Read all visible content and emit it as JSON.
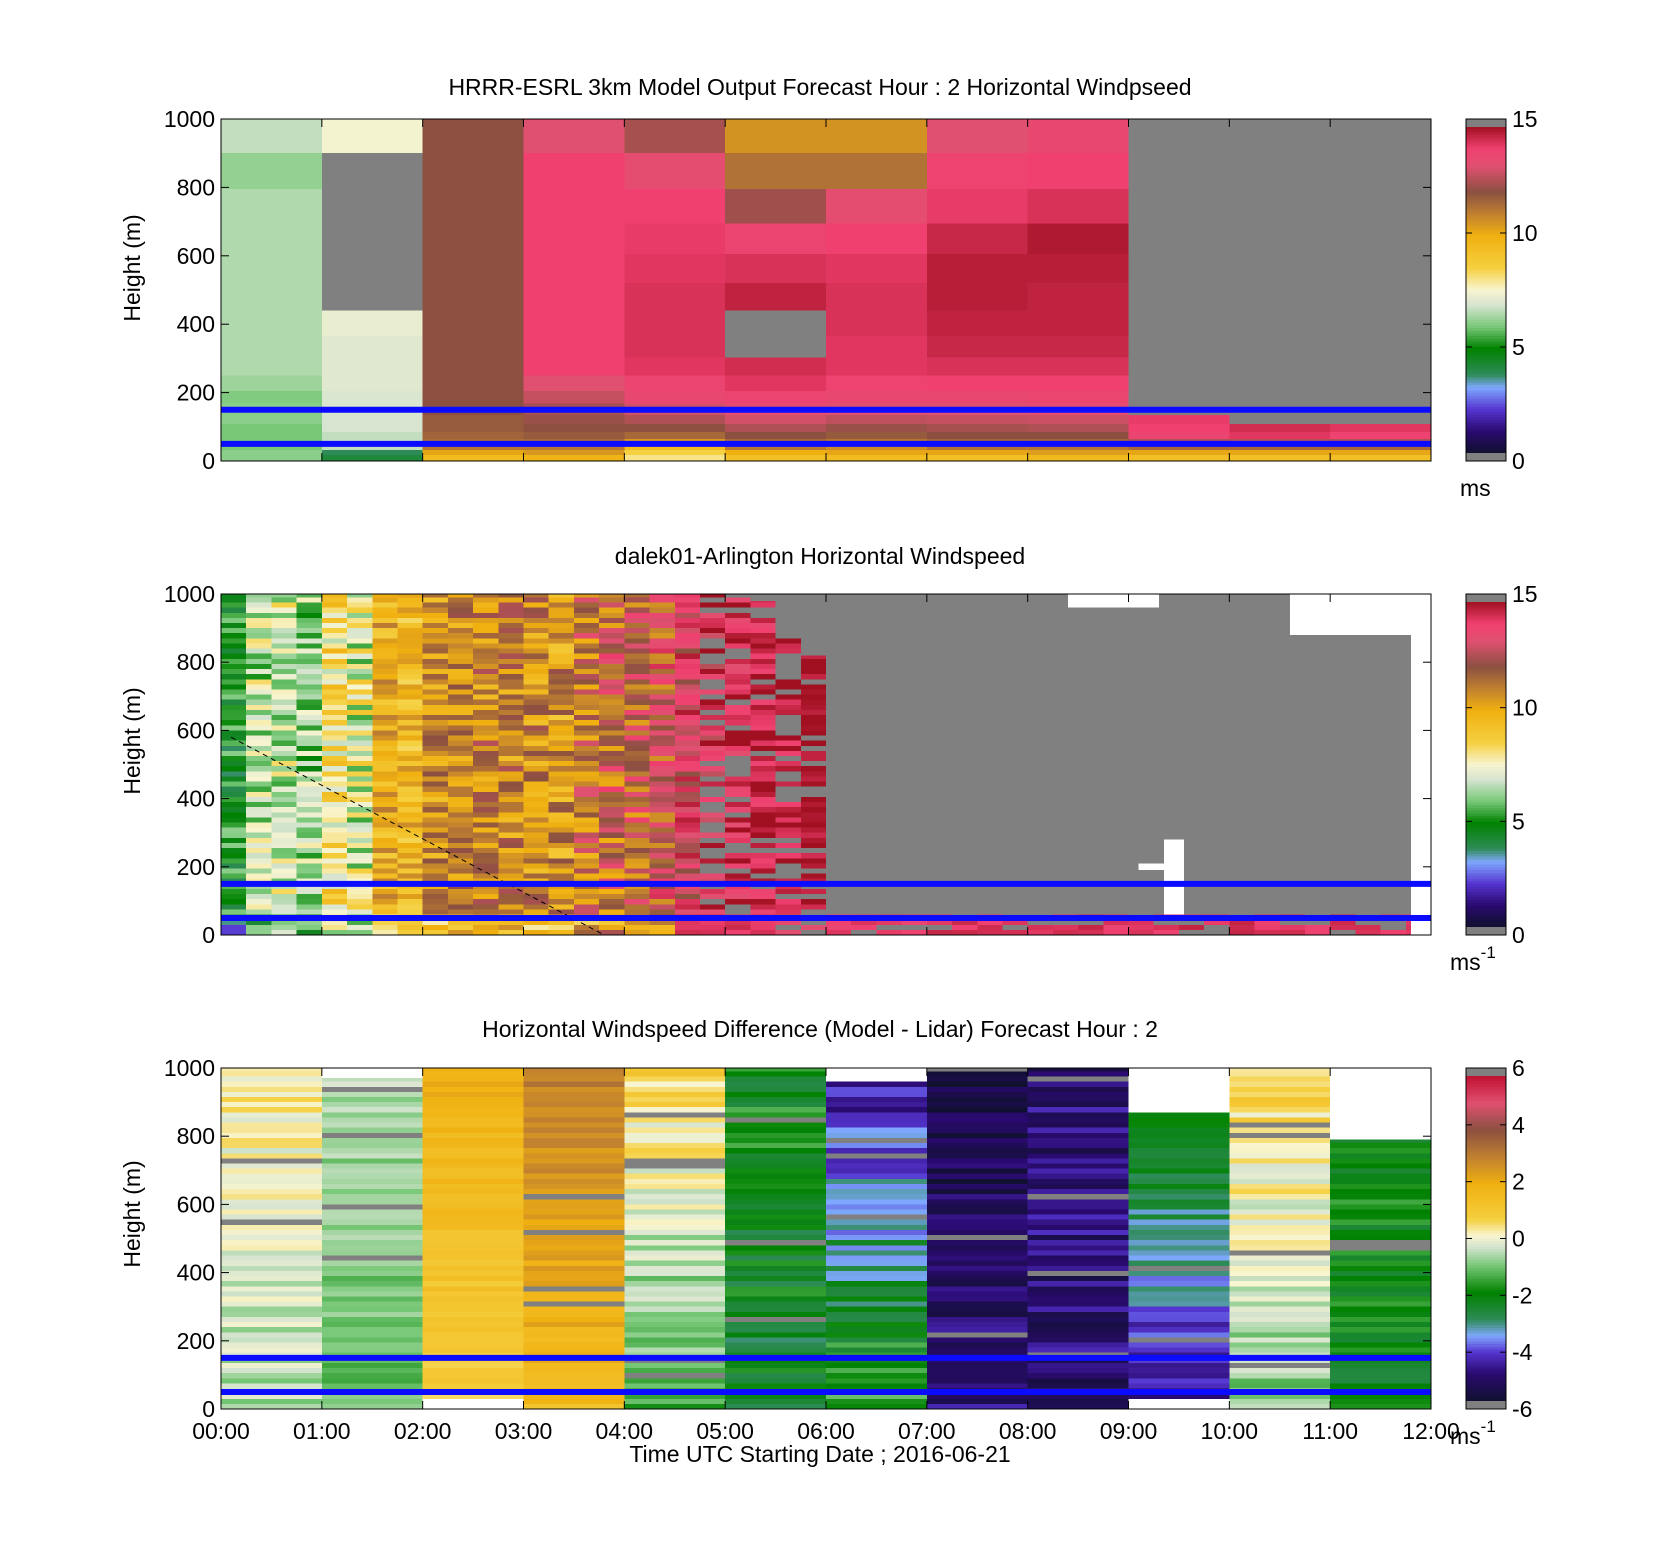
{
  "figure": {
    "xlabel": "Time UTC  Starting Date ; 2016-06-21",
    "x_ticks": [
      "00:00",
      "01:00",
      "02:00",
      "03:00",
      "04:00",
      "05:00",
      "06:00",
      "07:00",
      "08:00",
      "09:00",
      "10:00",
      "11:00",
      "12:00"
    ]
  },
  "reference_lines": {
    "color": "#0b0bff",
    "heights_m": [
      150,
      50
    ]
  },
  "colors": {
    "missing": "#808080",
    "windspeed_colormap_stops": [
      [
        0,
        "#101030"
      ],
      [
        1,
        "#2a0a70"
      ],
      [
        2,
        "#5535d0"
      ],
      [
        3,
        "#7fa8ff"
      ],
      [
        3.6,
        "#2e8b57"
      ],
      [
        4.8,
        "#008200"
      ],
      [
        5.8,
        "#78c878"
      ],
      [
        6.8,
        "#d6e4d0"
      ],
      [
        7.5,
        "#f8f5d0"
      ],
      [
        8.5,
        "#f5d040"
      ],
      [
        10,
        "#f0b010"
      ],
      [
        11,
        "#c08030"
      ],
      [
        12,
        "#8b5040"
      ],
      [
        13.2,
        "#e05070"
      ],
      [
        14,
        "#f04070"
      ],
      [
        15,
        "#a01020"
      ]
    ],
    "difference_colormap_stops": [
      [
        -6,
        "#101030"
      ],
      [
        -5,
        "#2a0a70"
      ],
      [
        -4.2,
        "#5535d0"
      ],
      [
        -3.6,
        "#7fa8ff"
      ],
      [
        -3,
        "#2e8b57"
      ],
      [
        -2,
        "#008200"
      ],
      [
        -1,
        "#78c878"
      ],
      [
        -0.3,
        "#d6e4d0"
      ],
      [
        0.1,
        "#f8f5d0"
      ],
      [
        0.7,
        "#f5d040"
      ],
      [
        2,
        "#f0b010"
      ],
      [
        3,
        "#c08030"
      ],
      [
        4,
        "#8b5040"
      ],
      [
        5,
        "#e05070"
      ],
      [
        6,
        "#c01030"
      ]
    ]
  },
  "chart_data": [
    {
      "type": "heatmap",
      "title": "HRRR-ESRL 3km Model Output   Forecast Hour : 2 Horizontal Windpseed",
      "ylabel": "Height (m)",
      "ylim": [
        0,
        1000
      ],
      "y_ticks": [
        "0",
        "200",
        "400",
        "600",
        "800",
        "1000"
      ],
      "xlim_hours": [
        0,
        12
      ],
      "colorbar": {
        "min": 0,
        "max": 15,
        "ticks": [
          "0",
          "5",
          "10",
          "15"
        ],
        "unit": "ms",
        "unit_sup": ""
      },
      "height_levels_m": [
        10,
        25,
        40,
        55,
        75,
        95,
        120,
        150,
        185,
        225,
        275,
        330,
        400,
        480,
        560,
        650,
        740,
        850,
        950
      ],
      "columns": [
        {
          "hours": [
            0,
            1
          ],
          "speeds": [
            6,
            6,
            5.8,
            5.8,
            5.8,
            5.8,
            6,
            6,
            5.9,
            6.2,
            6.4,
            6.4,
            6.4,
            6.4,
            6.4,
            6.4,
            6.4,
            6.1,
            6.6
          ]
        },
        {
          "hours": [
            1,
            2
          ],
          "speeds": [
            4,
            3.6,
            6.6,
            6.6,
            6.6,
            6.8,
            6.8,
            6.9,
            6.9,
            7,
            7,
            7,
            7.2,
            null,
            null,
            null,
            null,
            null,
            7.4
          ]
        },
        {
          "hours": [
            2,
            3
          ],
          "speeds": [
            9.5,
            10.2,
            11.2,
            11.4,
            11.6,
            11.8,
            11.8,
            12,
            12,
            12,
            12,
            12,
            12,
            12,
            12,
            12,
            12,
            12,
            12
          ]
        },
        {
          "hours": [
            3,
            4
          ],
          "speeds": [
            9.8,
            10.5,
            11.2,
            11.5,
            11.8,
            12,
            12.2,
            12.4,
            12.8,
            13.2,
            14,
            14,
            14,
            14,
            14,
            14,
            14,
            14,
            13.2
          ]
        },
        {
          "hours": [
            4,
            5
          ],
          "speeds": [
            8,
            8.5,
            9.5,
            10.5,
            11.5,
            12,
            12.5,
            13,
            13.6,
            13.8,
            14.2,
            14.3,
            14.3,
            14.3,
            14.2,
            14.1,
            14,
            13.4,
            12.4
          ]
        },
        {
          "hours": [
            5,
            6
          ],
          "speeds": [
            9.3,
            10,
            11.2,
            11.5,
            12,
            12.5,
            13,
            13.4,
            13.8,
            14.2,
            14.4,
            null,
            null,
            14.6,
            14.3,
            13.8,
            12.3,
            11.3,
            10.6
          ]
        },
        {
          "hours": [
            6,
            7
          ],
          "speeds": [
            9.5,
            10.2,
            10.8,
            11.2,
            11.8,
            12.2,
            12.7,
            13.2,
            13.6,
            13.9,
            14.2,
            14.2,
            14.3,
            14.3,
            14.2,
            14,
            13.4,
            11.3,
            10.6
          ]
        },
        {
          "hours": [
            7,
            8
          ],
          "speeds": [
            9.3,
            10.2,
            11.3,
            11.6,
            12,
            12.4,
            12.8,
            13.2,
            13.6,
            14,
            14.3,
            14.5,
            14.6,
            14.7,
            14.7,
            14.5,
            14.1,
            13.9,
            13.2
          ]
        },
        {
          "hours": [
            8,
            9
          ],
          "speeds": [
            9.6,
            10.4,
            11.2,
            11.6,
            12,
            12.5,
            12.9,
            13.3,
            13.7,
            14,
            14.3,
            14.5,
            14.6,
            14.6,
            14.7,
            14.8,
            14.3,
            14,
            13.6
          ]
        },
        {
          "hours": [
            9,
            10
          ],
          "speeds": [
            9.3,
            10.2,
            11.5,
            12.5,
            13.8,
            14,
            14.1,
            null,
            null,
            null,
            null,
            null,
            null,
            null,
            null,
            null,
            null,
            null,
            null
          ]
        },
        {
          "hours": [
            10,
            11
          ],
          "speeds": [
            9.3,
            10.2,
            11.5,
            12.6,
            14.2,
            14.4,
            null,
            null,
            null,
            null,
            null,
            null,
            null,
            null,
            null,
            null,
            null,
            null,
            null
          ]
        },
        {
          "hours": [
            11,
            12
          ],
          "speeds": [
            9.3,
            10.2,
            11.5,
            12.5,
            13.9,
            14.2,
            null,
            null,
            null,
            null,
            null,
            null,
            null,
            null,
            null,
            null,
            null,
            null,
            null
          ]
        }
      ]
    },
    {
      "type": "heatmap",
      "title": "dalek01-Arlington  Horizontal Windspeed",
      "ylabel": "Height (m)",
      "ylim": [
        0,
        1000
      ],
      "y_ticks": [
        "0",
        "200",
        "400",
        "600",
        "800",
        "1000"
      ],
      "xlim_hours": [
        0,
        12
      ],
      "colorbar": {
        "min": 0,
        "max": 15,
        "ticks": [
          "0",
          "5",
          "10",
          "15"
        ],
        "unit": "ms",
        "unit_sup": "-1"
      },
      "height_bin_m": 15,
      "column_width_hours": 0.25,
      "column_mean_speeds": [
        4.8,
        6.6,
        6.9,
        6.2,
        8.1,
        7.2,
        9.9,
        9.5,
        10.6,
        10.8,
        11.0,
        10.9,
        10.8,
        10.5,
        11.6,
        12.0,
        12.1,
        12.4,
        13.5,
        13.9,
        14.2,
        14.4,
        14.6,
        14.8
      ],
      "column_speed_spread": [
        0.8,
        1.0,
        1.0,
        1.0,
        1.1,
        1.2,
        0.8,
        0.8,
        0.9,
        0.9,
        1.0,
        1.0,
        1.0,
        1.1,
        1.2,
        1.3,
        1.2,
        1.2,
        1.0,
        0.8,
        0.6,
        0.5,
        0.4,
        0.3
      ],
      "no_data_tops_m": [
        1000,
        1000,
        1000,
        1000,
        1000,
        1000,
        1000,
        1000,
        1000,
        1000,
        1000,
        1000,
        1000,
        1000,
        1000,
        1000,
        1000,
        1000,
        1000,
        1000,
        1000,
        980,
        900,
        820
      ],
      "after_06_missing_above_m": 60,
      "after_06_surface_speeds": [
        14,
        14.2,
        14.3,
        14.1,
        14.4,
        14.2,
        14.3,
        14.1,
        14.4,
        14.2,
        14.3,
        14.1,
        14.4,
        14.2,
        14.3,
        14.1,
        14.4,
        14.2,
        14.3,
        14.1,
        14.4,
        14.2,
        14.3,
        14.1
      ],
      "blank_regions": [
        {
          "t": [
            10.6,
            11.9
          ],
          "h": [
            880,
            1000
          ]
        },
        {
          "t": [
            11.8,
            12.0
          ],
          "h": [
            0,
            1000
          ]
        },
        {
          "t": [
            8.4,
            9.3
          ],
          "h": [
            960,
            1000
          ]
        },
        {
          "t": [
            9.35,
            9.55
          ],
          "h": [
            60,
            280
          ]
        },
        {
          "t": [
            9.1,
            9.35
          ],
          "h": [
            190,
            210
          ]
        }
      ],
      "dashed_line": {
        "from": [
          0.1,
          580
        ],
        "to": [
          3.8,
          0
        ]
      }
    },
    {
      "type": "heatmap",
      "title": "Horizontal Windspeed Difference (Model - Lidar) Forecast Hour : 2",
      "ylabel": "Height (m)",
      "ylim": [
        0,
        1000
      ],
      "y_ticks": [
        "0",
        "200",
        "400",
        "600",
        "800",
        "1000"
      ],
      "xlim_hours": [
        0,
        12
      ],
      "colorbar": {
        "min": -6,
        "max": 6,
        "ticks": [
          "-6",
          "-4",
          "-2",
          "0",
          "2",
          "4",
          "6"
        ],
        "unit": "ms",
        "unit_sup": "-1"
      },
      "height_bin_m": 15,
      "columns": [
        {
          "hours": [
            0,
            1
          ],
          "bottom_m": 0,
          "top_m": 1000,
          "low_diff": -0.6,
          "high_diff": 0.3,
          "spread": 0.5
        },
        {
          "hours": [
            1,
            2
          ],
          "bottom_m": 0,
          "top_m": 970,
          "low_diff": -1.2,
          "high_diff": -0.6,
          "spread": 0.4
        },
        {
          "hours": [
            2,
            3
          ],
          "bottom_m": 30,
          "top_m": 1000,
          "low_diff": 0.8,
          "high_diff": 2.0,
          "spread": 0.3
        },
        {
          "hours": [
            3,
            4
          ],
          "bottom_m": 0,
          "top_m": 1000,
          "low_diff": 1.6,
          "high_diff": 3.0,
          "spread": 0.4
        },
        {
          "hours": [
            4,
            5
          ],
          "bottom_m": 0,
          "top_m": 1000,
          "low_diff": -1.5,
          "high_diff": 0.7,
          "spread": 0.6
        },
        {
          "hours": [
            5,
            6
          ],
          "bottom_m": 0,
          "top_m": 1000,
          "low_diff": -2.5,
          "high_diff": -2.0,
          "spread": 0.8
        },
        {
          "hours": [
            6,
            7
          ],
          "bottom_m": 0,
          "top_m": 960,
          "low_diff": -1.5,
          "high_diff": -4.8,
          "spread": 0.8
        },
        {
          "hours": [
            7,
            8
          ],
          "bottom_m": 0,
          "top_m": 1000,
          "low_diff": -5.0,
          "high_diff": -5.6,
          "spread": 0.6
        },
        {
          "hours": [
            8,
            9
          ],
          "bottom_m": 0,
          "top_m": 1000,
          "low_diff": -5.0,
          "high_diff": -5.0,
          "spread": 0.7
        },
        {
          "hours": [
            9,
            10
          ],
          "bottom_m": 30,
          "top_m": 870,
          "low_diff": -4.8,
          "high_diff": -1.8,
          "spread": 0.6
        },
        {
          "hours": [
            10,
            11
          ],
          "bottom_m": 0,
          "top_m": 1000,
          "low_diff": -1.0,
          "high_diff": 0.8,
          "spread": 0.6
        },
        {
          "hours": [
            11,
            12
          ],
          "bottom_m": 0,
          "top_m": 790,
          "low_diff": -2.2,
          "high_diff": -2.0,
          "spread": 0.6
        }
      ]
    }
  ]
}
